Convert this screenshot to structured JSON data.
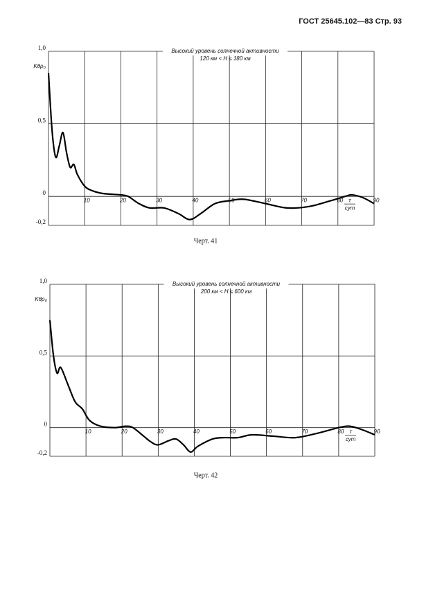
{
  "header": "ГОСТ 25645.102—83 Стр. 93",
  "chart_data": [
    {
      "type": "line",
      "title": "Высокий уровень солнечной активности",
      "subtitle": "120 км < H ≤ 180 км",
      "y_label": "Kθρ₀",
      "x_label": [
        "τ",
        "сут"
      ],
      "caption": "Черт. 41",
      "x": [
        0,
        1,
        2,
        3,
        4,
        5,
        6,
        7,
        8,
        10,
        12,
        15,
        20,
        22,
        25,
        28,
        32,
        36,
        39,
        42,
        46,
        50,
        54,
        60,
        66,
        72,
        78,
        82,
        84,
        87,
        90
      ],
      "values": [
        0.85,
        0.45,
        0.27,
        0.35,
        0.44,
        0.3,
        0.2,
        0.22,
        0.15,
        0.07,
        0.04,
        0.02,
        0.01,
        0.0,
        -0.05,
        -0.08,
        -0.08,
        -0.12,
        -0.16,
        -0.12,
        -0.05,
        -0.03,
        -0.02,
        -0.05,
        -0.08,
        -0.07,
        -0.03,
        0.0,
        0.01,
        -0.01,
        -0.05
      ],
      "color": "#000000",
      "grid": true,
      "xlim": [
        0,
        90
      ],
      "xticks": [
        10,
        20,
        30,
        40,
        50,
        60,
        70,
        80,
        90
      ],
      "ylim": [
        -0.2,
        1
      ],
      "yticks": [
        {
          "value": -0.2,
          "label": "-0,2"
        },
        0,
        {
          "value": 0.5,
          "label": "0,5"
        },
        {
          "value": 1,
          "label": "1,0"
        }
      ]
    },
    {
      "type": "line",
      "title": "Высокий уровень солнечной активности",
      "subtitle": "200 км < H ≤ 600 км",
      "y_label": "Kθρ₀",
      "x_label": [
        "τ",
        "сут"
      ],
      "caption": "Черт. 42",
      "x": [
        0,
        1,
        2,
        3,
        5,
        7,
        9,
        11,
        14,
        18,
        21,
        23,
        26,
        28,
        30,
        33,
        35,
        37,
        39,
        41,
        45,
        48,
        52,
        56,
        62,
        68,
        74,
        80,
        83,
        86,
        90
      ],
      "values": [
        0.75,
        0.5,
        0.38,
        0.42,
        0.3,
        0.18,
        0.13,
        0.05,
        0.01,
        0.0,
        0.01,
        0.0,
        -0.06,
        -0.1,
        -0.12,
        -0.09,
        -0.08,
        -0.12,
        -0.17,
        -0.13,
        -0.08,
        -0.07,
        -0.07,
        -0.05,
        -0.06,
        -0.07,
        -0.04,
        0.0,
        0.01,
        -0.01,
        -0.05
      ],
      "color": "#000000",
      "grid": true,
      "xlim": [
        0,
        90
      ],
      "xticks": [
        10,
        20,
        30,
        40,
        50,
        60,
        70,
        80,
        90
      ],
      "ylim": [
        -0.2,
        1
      ],
      "yticks": [
        {
          "value": -0.2,
          "label": "-0,2"
        },
        0,
        {
          "value": 0.5,
          "label": "0,5"
        },
        {
          "value": 1,
          "label": "1,0"
        }
      ]
    }
  ]
}
